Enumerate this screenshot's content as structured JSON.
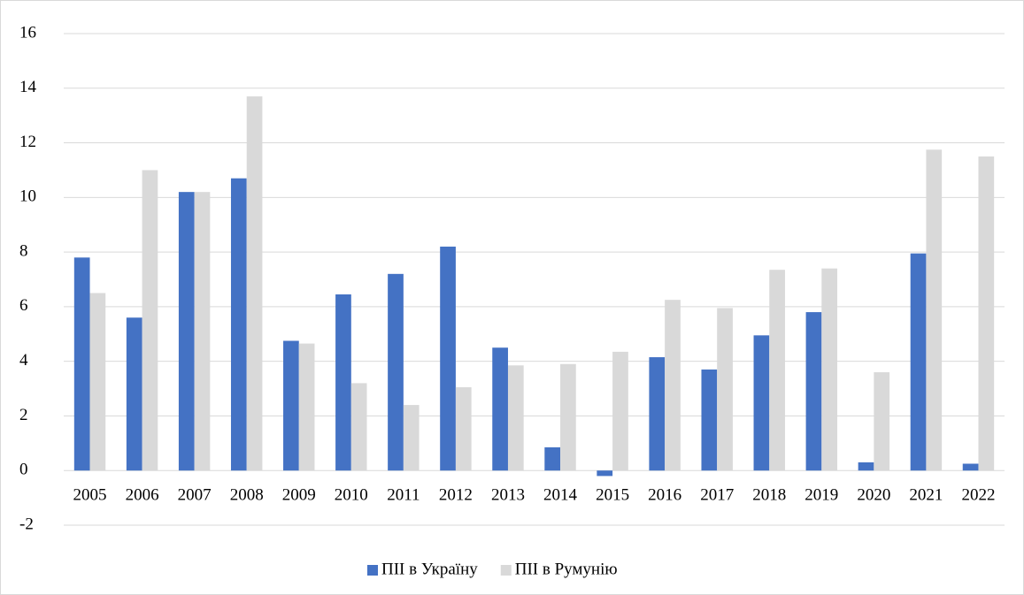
{
  "chart_data": {
    "type": "bar",
    "categories": [
      "2005",
      "2006",
      "2007",
      "2008",
      "2009",
      "2010",
      "2011",
      "2012",
      "2013",
      "2014",
      "2015",
      "2016",
      "2017",
      "2018",
      "2019",
      "2020",
      "2021",
      "2022"
    ],
    "series": [
      {
        "name": "ПІІ в Україну",
        "color": "#4472c4",
        "values": [
          7.8,
          5.6,
          10.2,
          10.7,
          4.75,
          6.45,
          7.2,
          8.2,
          4.5,
          0.85,
          -0.2,
          4.15,
          3.7,
          4.95,
          5.8,
          0.3,
          7.95,
          0.25
        ]
      },
      {
        "name": "ПІІ в Румунію",
        "color": "#d9d9d9",
        "values": [
          6.5,
          11.0,
          10.2,
          13.7,
          4.65,
          3.2,
          2.4,
          3.05,
          3.85,
          3.9,
          4.35,
          6.25,
          5.95,
          7.35,
          7.4,
          3.6,
          11.75,
          11.5
        ]
      }
    ],
    "ylim": [
      -2,
      16
    ],
    "yticks": [
      -2,
      0,
      2,
      4,
      6,
      8,
      10,
      12,
      14,
      16
    ],
    "grid": true,
    "legend": "bottom"
  }
}
